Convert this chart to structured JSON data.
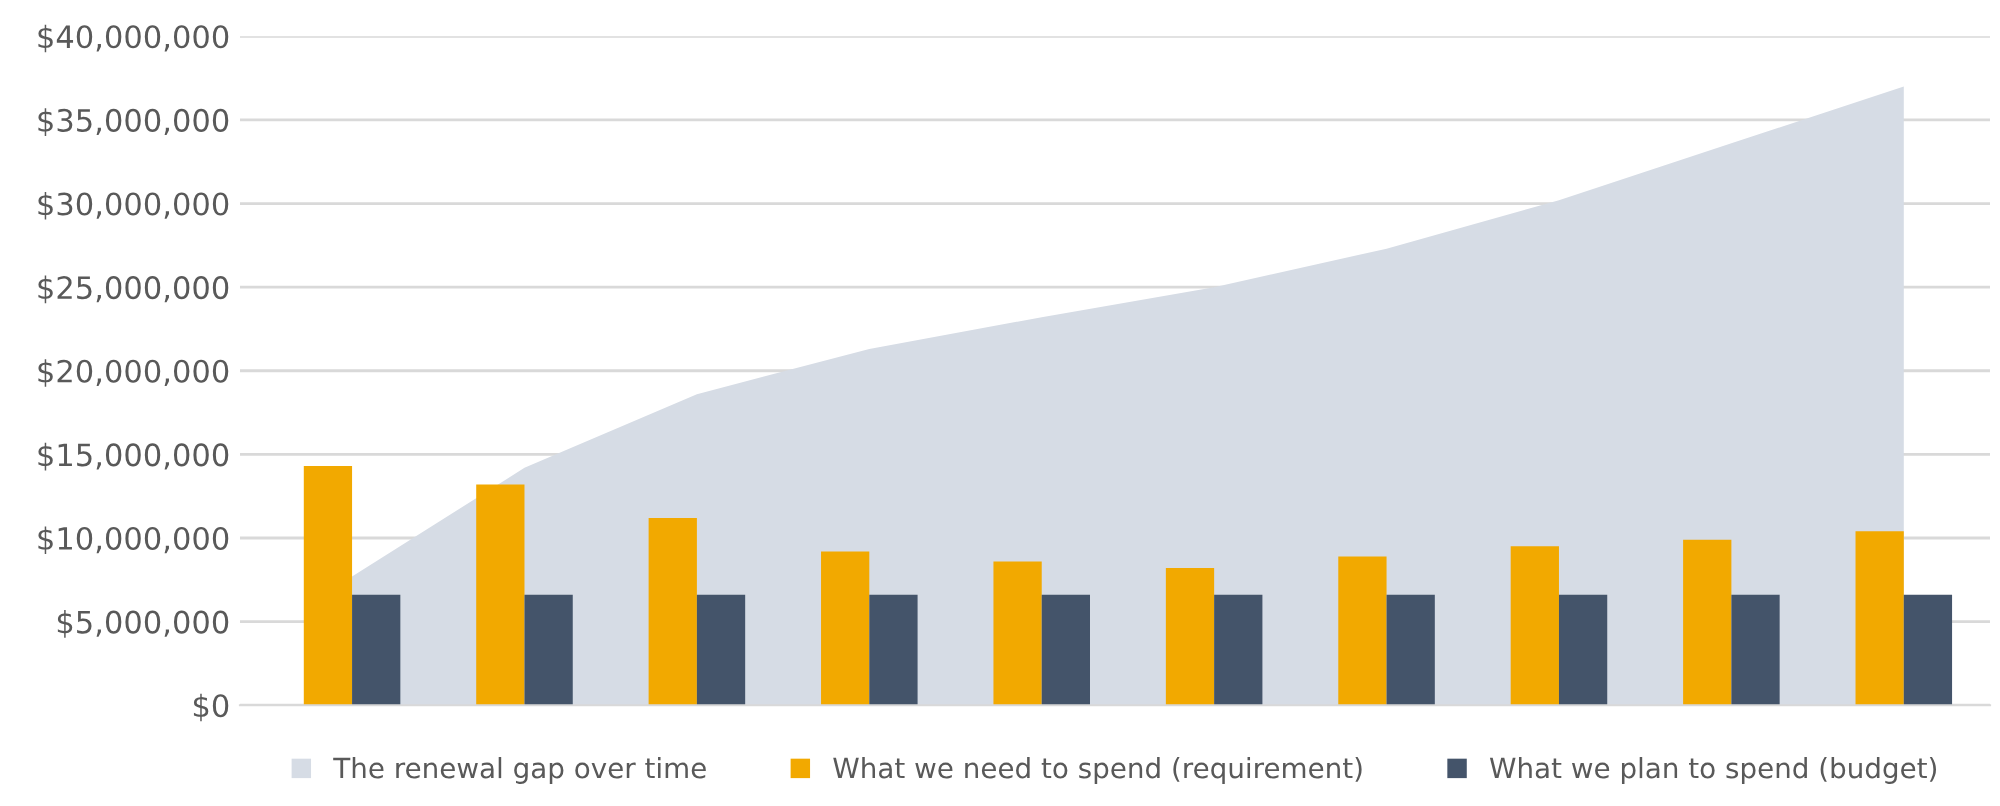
{
  "chart_data": {
    "type": "bar",
    "categories": [
      null,
      null,
      null,
      null,
      null,
      null,
      null,
      null,
      null,
      null
    ],
    "series": [
      {
        "name": "The renewal gap over time",
        "type": "area",
        "color": "#d6dce5",
        "values": [
          7700000,
          14200000,
          18600000,
          21300000,
          23200000,
          25000000,
          27300000,
          30200000,
          33600000,
          37000000
        ]
      },
      {
        "name": "What we need to spend (requirement)",
        "color": "#f2a900",
        "values": [
          14300000,
          13200000,
          11200000,
          9200000,
          8600000,
          8200000,
          8900000,
          9500000,
          9900000,
          10400000
        ]
      },
      {
        "name": "What we plan to spend (budget)",
        "color": "#44546a",
        "values": [
          6600000,
          6600000,
          6600000,
          6600000,
          6600000,
          6600000,
          6600000,
          6600000,
          6600000,
          6600000
        ]
      }
    ],
    "ylim": [
      0,
      40000000
    ],
    "yticks": [
      {
        "value": 0,
        "label": "$0"
      },
      {
        "value": 5000000,
        "label": "$5,000,000"
      },
      {
        "value": 10000000,
        "label": "$10,000,000"
      },
      {
        "value": 15000000,
        "label": "$15,000,000"
      },
      {
        "value": 20000000,
        "label": "$20,000,000"
      },
      {
        "value": 25000000,
        "label": "$25,000,000"
      },
      {
        "value": 30000000,
        "label": "$30,000,000"
      },
      {
        "value": 35000000,
        "label": "$35,000,000"
      },
      {
        "value": 40000000,
        "label": "$40,000,000"
      }
    ],
    "grid": "y",
    "legend": "bottom"
  }
}
